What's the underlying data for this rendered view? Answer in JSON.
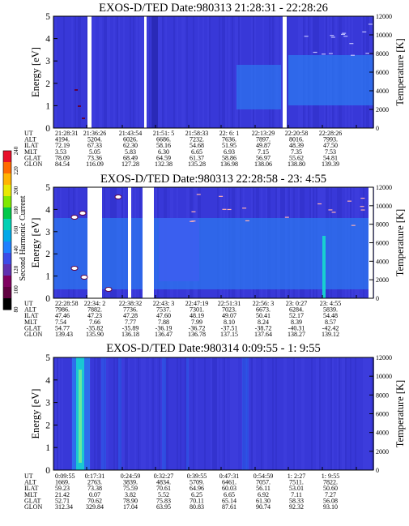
{
  "colorbar": {
    "label": "Second Harmonic Current",
    "ticks": [
      "240",
      "220",
      "200",
      "180",
      "160",
      "140",
      "120",
      "100",
      "80"
    ],
    "colors": [
      "#e8102a",
      "#ff6a00",
      "#ffb300",
      "#e8e800",
      "#7fe800",
      "#00c84a",
      "#00d0b4",
      "#00a8e8",
      "#2080ff",
      "#3c4ce8",
      "#6030b0",
      "#800060",
      "#600040",
      "#000000"
    ]
  },
  "row_labels": [
    "UT",
    "ALT",
    "ILAT",
    "MLT",
    "GLAT",
    "GLON"
  ],
  "colors": {
    "background": "#3838d8",
    "mid": "#2c78f0",
    "high": "#18d0d0",
    "peak": "#80f090"
  },
  "chart_data": [
    {
      "type": "heatmap",
      "title": "EXOS-D/TED  Date:980313  21:28:31 - 22:28:26",
      "ylabel": "Energy [eV]",
      "ylabel_right": "Temperature [K]",
      "yticks_left": [
        "5",
        "4",
        "3",
        "2",
        "1",
        "0"
      ],
      "yticks_right": [
        "12000",
        "10000",
        "8000",
        "6000",
        "4000",
        "2000",
        "0"
      ],
      "ylim": [
        0,
        5
      ],
      "ylim_right": [
        0,
        12000
      ],
      "columns": [
        [
          "21:28:31",
          "4194.",
          "72.19",
          "3.53",
          "78.09",
          "84.54"
        ],
        [
          "21:36:26",
          "5204.",
          "67.33",
          "5.05",
          "73.36",
          "116.09"
        ],
        [
          "21:43:54",
          "6026.",
          "62.30",
          "5.83",
          "68.49",
          "127.28"
        ],
        [
          "21:51: 5",
          "6686.",
          "58.16",
          "6.30",
          "64.59",
          "132.38"
        ],
        [
          "21:58:33",
          "7232.",
          "54.68",
          "6.65",
          "61.37",
          "135.28"
        ],
        [
          "22: 6: 1",
          "7636.",
          "51.95",
          "6.93",
          "58.86",
          "136.98"
        ],
        [
          "22:13:29",
          "7897.",
          "49.87",
          "7.15",
          "56.97",
          "138.06"
        ],
        [
          "22:20:58",
          "8016.",
          "48.39",
          "7.35",
          "55.62",
          "138.80"
        ],
        [
          "22:28:26",
          "7993.",
          "47.50",
          "7.53",
          "54.81",
          "139.39"
        ]
      ]
    },
    {
      "type": "heatmap",
      "title": "EXOS-D/TED   Date:980313  22:28:58 - 23: 4:55",
      "ylabel": "Energy [eV]",
      "ylabel_right": "Temperature [K]",
      "yticks_left": [
        "5",
        "4",
        "3",
        "2",
        "1",
        "0"
      ],
      "yticks_right": [
        "12000",
        "10000",
        "8000",
        "6000",
        "4000",
        "2000",
        "0"
      ],
      "ylim": [
        0,
        5
      ],
      "ylim_right": [
        0,
        12000
      ],
      "columns": [
        [
          "22:28:58",
          "7986.",
          "47.46",
          "7.54",
          "54.77",
          "139.43"
        ],
        [
          "22:34: 2",
          "7882.",
          "47.23",
          "7.66",
          "-35.82",
          "135.90"
        ],
        [
          "22:38:32",
          "7736.",
          "47.28",
          "7.77",
          "-35.89",
          "136.18"
        ],
        [
          "22:43: 3",
          "7537.",
          "47.60",
          "7.88",
          "-36.19",
          "136.47"
        ],
        [
          "22:47:19",
          "7301.",
          "48.19",
          "7.99",
          "-36.72",
          "136.78"
        ],
        [
          "22:51:31",
          "7023.",
          "49.07",
          "8.10",
          "-37.51",
          "137.15"
        ],
        [
          "22:56: 3",
          "6673.",
          "50.41",
          "8.24",
          "-38.72",
          "137.64"
        ],
        [
          "23: 0:27",
          "6284.",
          "52.17",
          "8.39",
          "-40.31",
          "138.27"
        ],
        [
          "23: 4:55",
          "5839.",
          "54.48",
          "8.57",
          "-42.42",
          "139.12"
        ]
      ]
    },
    {
      "type": "heatmap",
      "title": "EXOS-D/TED   Date:980314  0:09:55 - 1: 9:55",
      "ylabel": "Energy [eV]",
      "ylabel_right": "Temperature [K]",
      "yticks_left": [
        "5",
        "4",
        "3",
        "2",
        "1",
        "0"
      ],
      "yticks_right": [
        "12000",
        "10000",
        "8000",
        "6000",
        "4000",
        "2000",
        "0"
      ],
      "ylim": [
        0,
        5
      ],
      "ylim_right": [
        0,
        12000
      ],
      "columns": [
        [
          "0:09:55",
          "1669.",
          "59.23",
          "21.42",
          "52.71",
          "312.34"
        ],
        [
          "0:17:31",
          "2763.",
          "73.38",
          "0.07",
          "70.62",
          "329.84"
        ],
        [
          "0:24:59",
          "3839.",
          "75.59",
          "3.82",
          "78.90",
          "17.04"
        ],
        [
          "0:32:27",
          "4834.",
          "70.61",
          "5.52",
          "75.83",
          "63.95"
        ],
        [
          "0:39:55",
          "5709.",
          "64.96",
          "6.25",
          "70.11",
          "80.83"
        ],
        [
          "0:47:31",
          "6461.",
          "60.03",
          "6.65",
          "65.14",
          "87.61"
        ],
        [
          "0:54:59",
          "7057.",
          "56.11",
          "6.92",
          "61.30",
          "90.74"
        ],
        [
          "1: 2:27",
          "7511.",
          "53.01",
          "7.11",
          "58.33",
          "92.32"
        ],
        [
          "1: 9:55",
          "7822.",
          "50.60",
          "7.27",
          "56.08",
          "93.10"
        ]
      ]
    }
  ]
}
